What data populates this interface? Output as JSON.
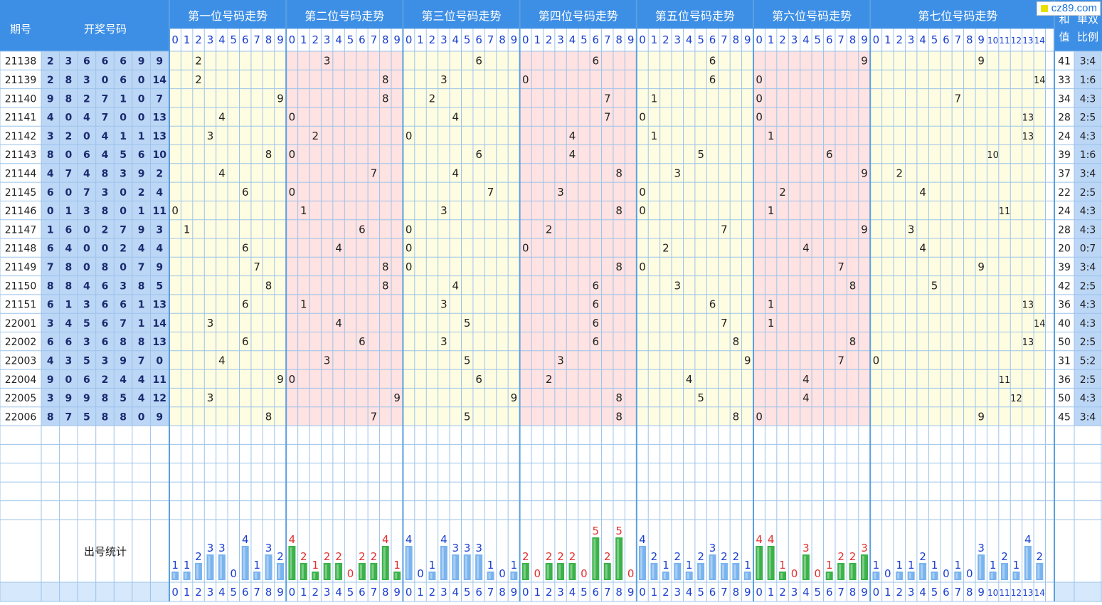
{
  "header": {
    "issue_label": "期号",
    "draw_label": "开奖号码",
    "sum_label_1": "和",
    "sum_label_2": "值",
    "ratio_label_1": "单双",
    "ratio_label_2": "比例",
    "stats_label": "出号统计"
  },
  "watermark": "cz89.com",
  "colors": {
    "header_blue": "#3d8fe6",
    "draw_cell_bg": "#bcd6f6",
    "draw_text": "#1a2a6e",
    "zone_yellow": "#fffde1",
    "zone_pink": "#ffe2e2",
    "bar_blue": "#7ab4ee",
    "bar_green": "#3bb24a",
    "count_red": "#e23030",
    "count_blue": "#1a3fd0"
  },
  "chart_data": {
    "type": "table",
    "title": "",
    "positions": [
      {
        "title": "第一位号码走势",
        "digits": [
          "0",
          "1",
          "2",
          "3",
          "4",
          "5",
          "6",
          "7",
          "8",
          "9"
        ],
        "counts": [
          1,
          1,
          2,
          3,
          3,
          0,
          4,
          1,
          3,
          2
        ]
      },
      {
        "title": "第二位号码走势",
        "digits": [
          "0",
          "1",
          "2",
          "3",
          "4",
          "5",
          "6",
          "7",
          "8",
          "9"
        ],
        "counts": [
          4,
          2,
          1,
          2,
          2,
          0,
          2,
          2,
          4,
          1
        ]
      },
      {
        "title": "第三位号码走势",
        "digits": [
          "0",
          "1",
          "2",
          "3",
          "4",
          "5",
          "6",
          "7",
          "8",
          "9"
        ],
        "counts": [
          4,
          0,
          1,
          4,
          3,
          3,
          3,
          1,
          0,
          1
        ]
      },
      {
        "title": "第四位号码走势",
        "digits": [
          "0",
          "1",
          "2",
          "3",
          "4",
          "5",
          "6",
          "7",
          "8",
          "9"
        ],
        "counts": [
          2,
          0,
          2,
          2,
          2,
          0,
          5,
          2,
          5,
          0
        ]
      },
      {
        "title": "第五位号码走势",
        "digits": [
          "0",
          "1",
          "2",
          "3",
          "4",
          "5",
          "6",
          "7",
          "8",
          "9"
        ],
        "counts": [
          4,
          2,
          1,
          2,
          1,
          2,
          3,
          2,
          2,
          1
        ]
      },
      {
        "title": "第六位号码走势",
        "digits": [
          "0",
          "1",
          "2",
          "3",
          "4",
          "5",
          "6",
          "7",
          "8",
          "9"
        ],
        "counts": [
          4,
          4,
          1,
          0,
          3,
          0,
          1,
          2,
          2,
          3
        ]
      },
      {
        "title": "第七位号码走势",
        "digits": [
          "0",
          "1",
          "2",
          "3",
          "4",
          "5",
          "6",
          "7",
          "8",
          "9",
          "10",
          "11",
          "12",
          "13",
          "14"
        ],
        "counts": [
          1,
          0,
          1,
          1,
          2,
          1,
          0,
          1,
          0,
          3,
          1,
          2,
          1,
          4,
          2
        ]
      }
    ],
    "rows": [
      {
        "issue": "21138",
        "digits": [
          "2",
          "3",
          "6",
          "6",
          "6",
          "9",
          "9"
        ],
        "sum": "41",
        "ratio": "3:4"
      },
      {
        "issue": "21139",
        "digits": [
          "2",
          "8",
          "3",
          "0",
          "6",
          "0",
          "14"
        ],
        "sum": "33",
        "ratio": "1:6"
      },
      {
        "issue": "21140",
        "digits": [
          "9",
          "8",
          "2",
          "7",
          "1",
          "0",
          "7"
        ],
        "sum": "34",
        "ratio": "4:3"
      },
      {
        "issue": "21141",
        "digits": [
          "4",
          "0",
          "4",
          "7",
          "0",
          "0",
          "13"
        ],
        "sum": "28",
        "ratio": "2:5"
      },
      {
        "issue": "21142",
        "digits": [
          "3",
          "2",
          "0",
          "4",
          "1",
          "1",
          "13"
        ],
        "sum": "24",
        "ratio": "4:3"
      },
      {
        "issue": "21143",
        "digits": [
          "8",
          "0",
          "6",
          "4",
          "5",
          "6",
          "10"
        ],
        "sum": "39",
        "ratio": "1:6"
      },
      {
        "issue": "21144",
        "digits": [
          "4",
          "7",
          "4",
          "8",
          "3",
          "9",
          "2"
        ],
        "sum": "37",
        "ratio": "3:4"
      },
      {
        "issue": "21145",
        "digits": [
          "6",
          "0",
          "7",
          "3",
          "0",
          "2",
          "4"
        ],
        "sum": "22",
        "ratio": "2:5"
      },
      {
        "issue": "21146",
        "digits": [
          "0",
          "1",
          "3",
          "8",
          "0",
          "1",
          "11"
        ],
        "sum": "24",
        "ratio": "4:3"
      },
      {
        "issue": "21147",
        "digits": [
          "1",
          "6",
          "0",
          "2",
          "7",
          "9",
          "3"
        ],
        "sum": "28",
        "ratio": "4:3"
      },
      {
        "issue": "21148",
        "digits": [
          "6",
          "4",
          "0",
          "0",
          "2",
          "4",
          "4"
        ],
        "sum": "20",
        "ratio": "0:7"
      },
      {
        "issue": "21149",
        "digits": [
          "7",
          "8",
          "0",
          "8",
          "0",
          "7",
          "9"
        ],
        "sum": "39",
        "ratio": "3:4"
      },
      {
        "issue": "21150",
        "digits": [
          "8",
          "8",
          "4",
          "6",
          "3",
          "8",
          "5"
        ],
        "sum": "42",
        "ratio": "2:5"
      },
      {
        "issue": "21151",
        "digits": [
          "6",
          "1",
          "3",
          "6",
          "6",
          "1",
          "13"
        ],
        "sum": "36",
        "ratio": "4:3"
      },
      {
        "issue": "22001",
        "digits": [
          "3",
          "4",
          "5",
          "6",
          "7",
          "1",
          "14"
        ],
        "sum": "40",
        "ratio": "4:3"
      },
      {
        "issue": "22002",
        "digits": [
          "6",
          "6",
          "3",
          "6",
          "8",
          "8",
          "13"
        ],
        "sum": "50",
        "ratio": "2:5"
      },
      {
        "issue": "22003",
        "digits": [
          "4",
          "3",
          "5",
          "3",
          "9",
          "7",
          "0"
        ],
        "sum": "31",
        "ratio": "5:2"
      },
      {
        "issue": "22004",
        "digits": [
          "9",
          "0",
          "6",
          "2",
          "4",
          "4",
          "11"
        ],
        "sum": "36",
        "ratio": "2:5"
      },
      {
        "issue": "22005",
        "digits": [
          "3",
          "9",
          "9",
          "8",
          "5",
          "4",
          "12"
        ],
        "sum": "50",
        "ratio": "4:3"
      },
      {
        "issue": "22006",
        "digits": [
          "8",
          "7",
          "5",
          "8",
          "8",
          "0",
          "9"
        ],
        "sum": "45",
        "ratio": "3:4"
      }
    ]
  }
}
